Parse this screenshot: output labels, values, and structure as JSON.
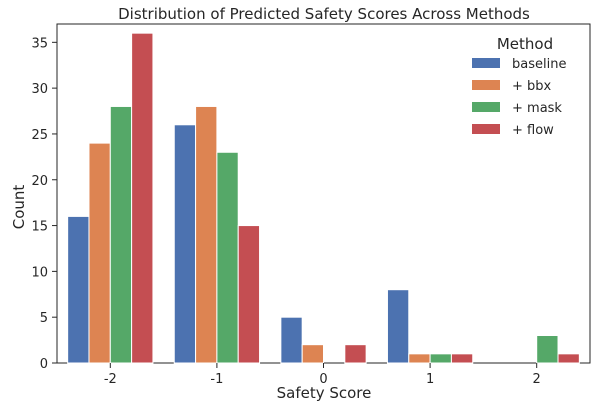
{
  "chart_data": {
    "type": "bar",
    "title": "Distribution of Predicted Safety Scores Across Methods",
    "xlabel": "Safety Score",
    "ylabel": "Count",
    "categories": [
      "-2",
      "-1",
      "0",
      "1",
      "2"
    ],
    "ylim": [
      0,
      37
    ],
    "yticks": [
      0,
      5,
      10,
      15,
      20,
      25,
      30,
      35
    ],
    "grid": false,
    "legend": {
      "title": "Method",
      "placement": "top-right"
    },
    "series": [
      {
        "name": "baseline",
        "color": "#4c72b0",
        "values": [
          16,
          26,
          5,
          8,
          0
        ]
      },
      {
        "name": "+ bbx",
        "color": "#dd8452",
        "values": [
          24,
          28,
          2,
          1,
          0
        ]
      },
      {
        "name": "+ mask",
        "color": "#55a868",
        "values": [
          28,
          23,
          0,
          1,
          3
        ]
      },
      {
        "name": "+ flow",
        "color": "#c44e52",
        "values": [
          36,
          15,
          2,
          1,
          1
        ]
      }
    ]
  }
}
